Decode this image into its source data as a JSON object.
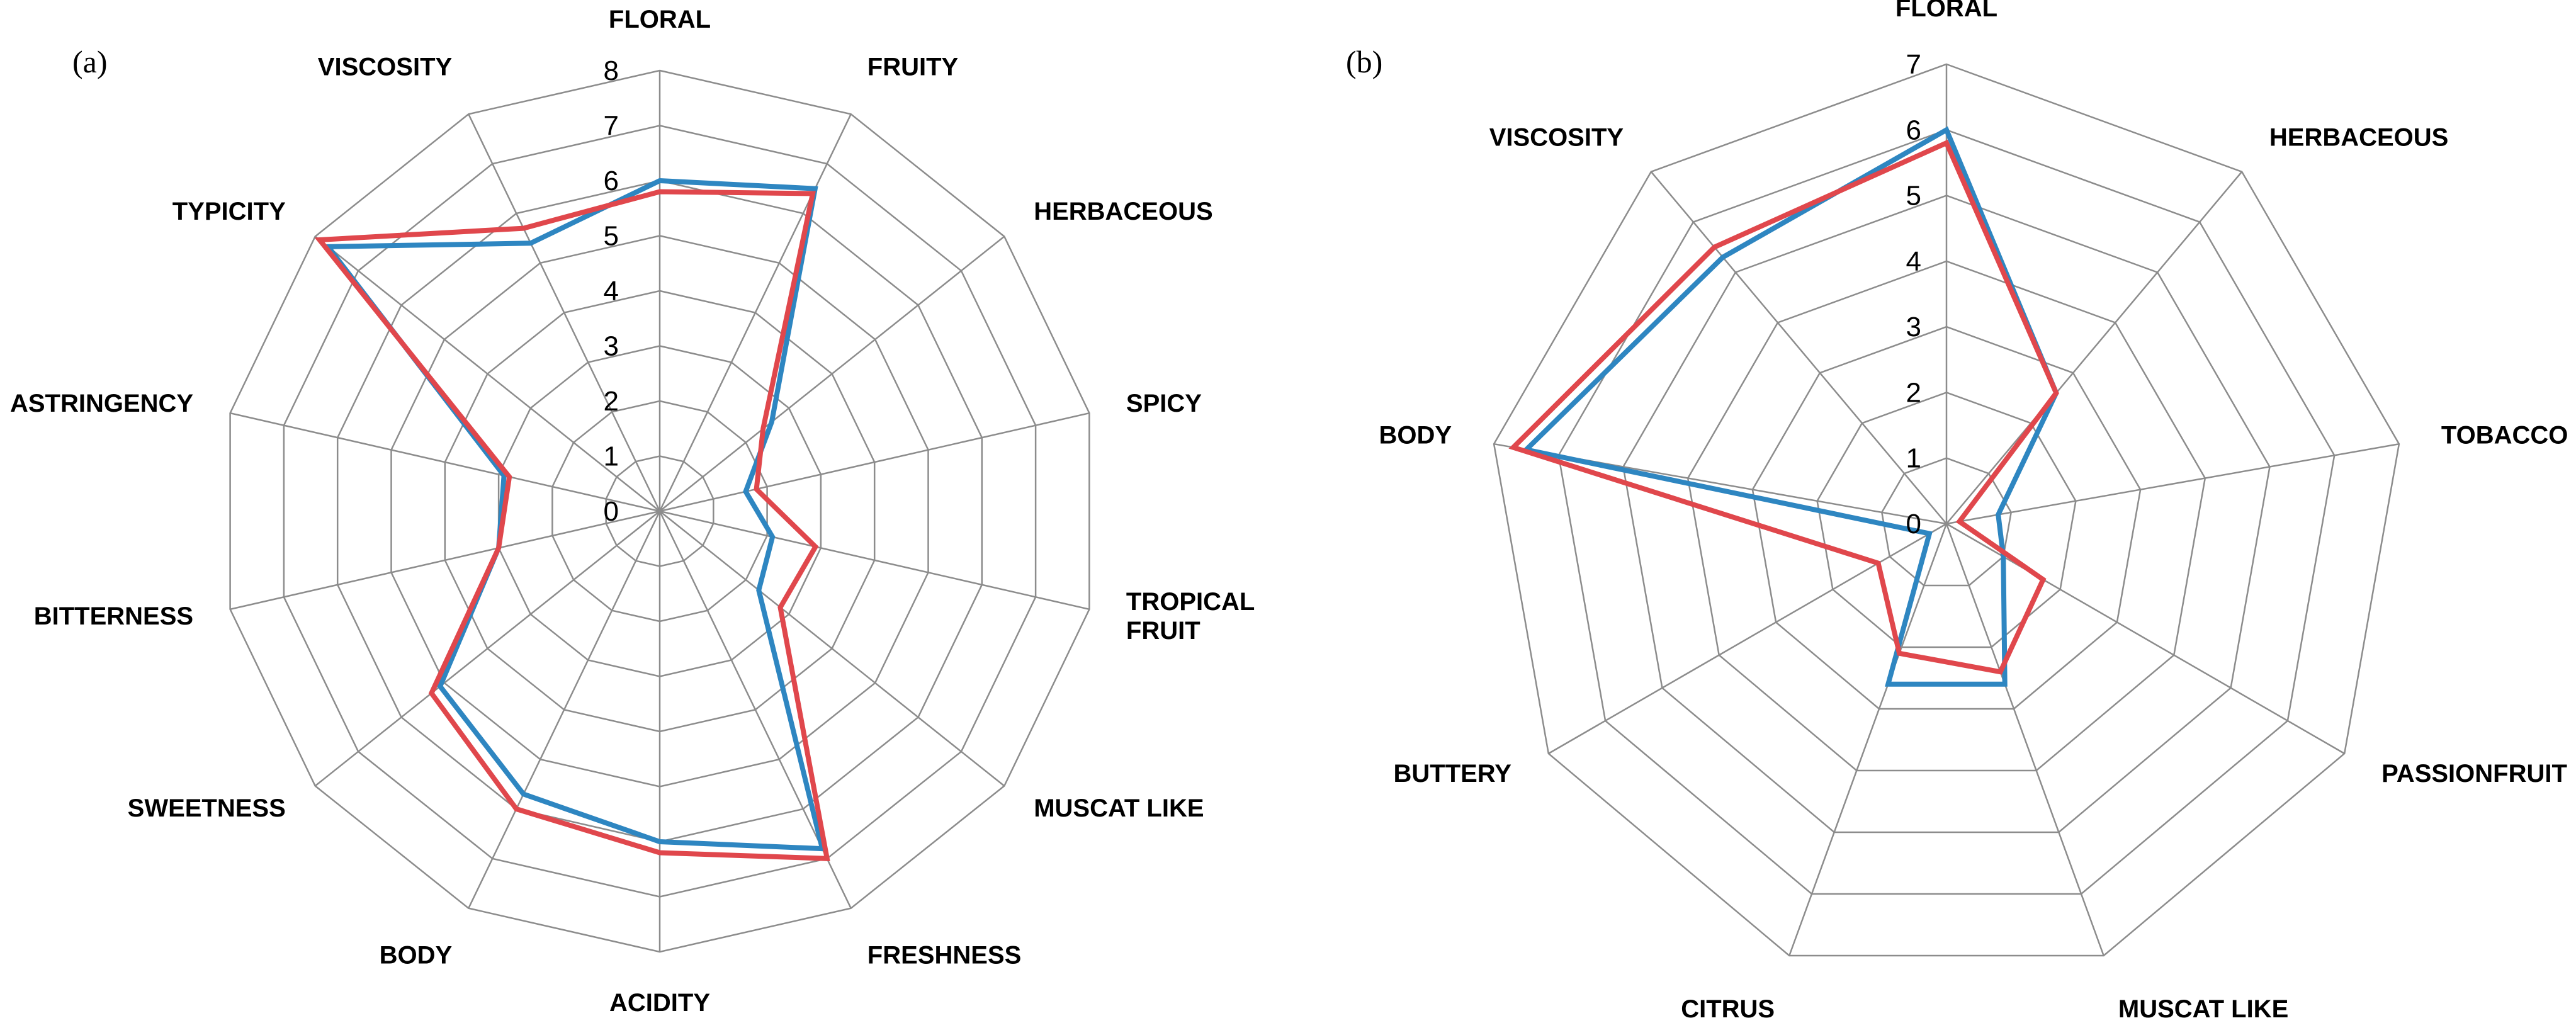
{
  "colors": {
    "series_1": "#2e86c1",
    "series_2": "#e0474c",
    "grid": "#8c8c8c"
  },
  "chart_data": [
    {
      "type": "radar",
      "panel_label": "(a)",
      "axes": [
        "FLORAL",
        "FRUITY",
        "HERBACEOUS",
        "SPICY",
        "TROPICAL FRUIT",
        "MUSCAT LIKE",
        "FRESHNESS",
        "ACIDITY",
        "BODY",
        "SWEETNESS",
        "BITTERNESS",
        "ASTRINGENCY",
        "TYPICITY",
        "VISCOSITY"
      ],
      "axis_label_lines": [
        [
          "FLORAL"
        ],
        [
          "FRUITY"
        ],
        [
          "HERBACEOUS"
        ],
        [
          "SPICY"
        ],
        [
          "TROPICAL",
          "FRUIT"
        ],
        [
          "MUSCAT LIKE"
        ],
        [
          "FRESHNESS"
        ],
        [
          "ACIDITY"
        ],
        [
          "BODY"
        ],
        [
          "SWEETNESS"
        ],
        [
          "BITTERNESS"
        ],
        [
          "ASTRINGENCY"
        ],
        [
          "TYPICITY"
        ],
        [
          "VISCOSITY"
        ]
      ],
      "range": [
        0,
        8
      ],
      "ticks": [
        "0",
        "1",
        "2",
        "3",
        "4",
        "5",
        "6",
        "7",
        "8"
      ],
      "series": [
        {
          "values": [
            6.0,
            6.5,
            2.6,
            1.6,
            2.1,
            2.3,
            6.8,
            6.0,
            5.7,
            5.1,
            3.0,
            2.9,
            7.7,
            5.4
          ]
        },
        {
          "values": [
            5.8,
            6.4,
            2.4,
            1.8,
            2.9,
            2.8,
            7.0,
            6.2,
            6.0,
            5.3,
            3.0,
            2.8,
            7.9,
            5.7
          ]
        }
      ]
    },
    {
      "type": "radar",
      "panel_label": "(b)",
      "axes": [
        "FLORAL",
        "HERBACEOUS",
        "TOBACCO",
        "PASSIONFRUIT",
        "MUSCAT LIKE",
        "CITRUS",
        "BUTTERY",
        "BODY",
        "VISCOSITY"
      ],
      "axis_label_lines": [
        [
          "FLORAL"
        ],
        [
          "HERBACEOUS"
        ],
        [
          "TOBACCO"
        ],
        [
          "PASSIONFRUIT"
        ],
        [
          "MUSCAT LIKE"
        ],
        [
          "CITRUS"
        ],
        [
          "BUTTERY"
        ],
        [
          "BODY"
        ],
        [
          "VISCOSITY"
        ]
      ],
      "range": [
        0,
        7
      ],
      "ticks": [
        "0",
        "1",
        "2",
        "3",
        "4",
        "5",
        "6",
        "7"
      ],
      "series": [
        {
          "values": [
            6.0,
            2.6,
            0.8,
            1.0,
            2.6,
            2.6,
            0.3,
            6.5,
            5.3
          ]
        },
        {
          "values": [
            5.8,
            2.6,
            0.2,
            1.7,
            2.4,
            2.1,
            1.2,
            6.7,
            5.5
          ]
        }
      ]
    }
  ]
}
